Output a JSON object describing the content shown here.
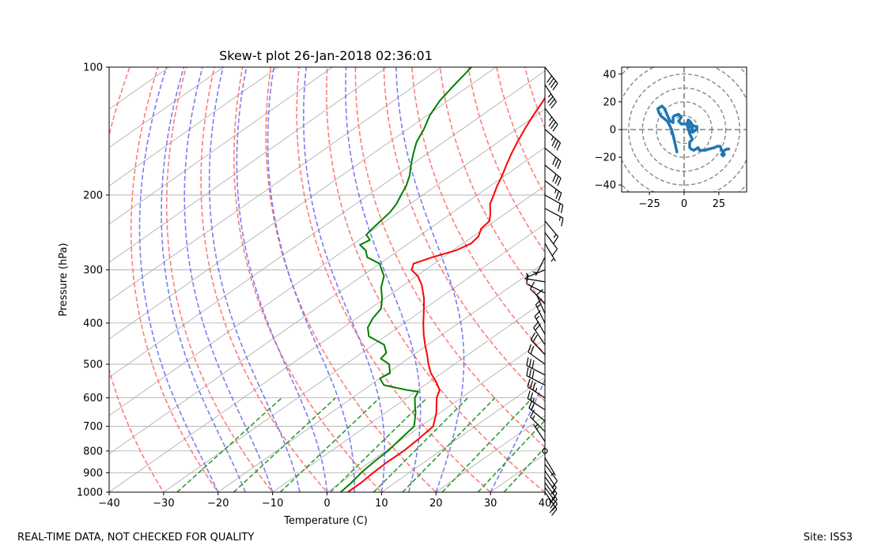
{
  "footer": {
    "left_text": "REAL-TIME DATA, NOT CHECKED FOR QUALITY",
    "right_text": "Site: ISS3"
  },
  "chart_data": [
    {
      "type": "line",
      "chart": "skew-t",
      "title": "Skew-t plot 26-Jan-2018 02:36:01",
      "xlabel": "Temperature (C)",
      "ylabel": "Pressure (hPa)",
      "xlim": [
        -40,
        40
      ],
      "ylim": [
        1000,
        100
      ],
      "x_ticks": [
        -40,
        -30,
        -20,
        -10,
        0,
        10,
        20,
        30,
        40
      ],
      "y_ticks": [
        1000,
        900,
        800,
        700,
        600,
        500,
        400,
        300,
        200,
        100
      ],
      "colors": {
        "temperature": "#ff0000",
        "dewpoint": "#008000",
        "isotherm": "#a9a9a9",
        "isobar": "#a9a9a9",
        "dry_adiabat": "#ff6666",
        "moist_adiabat": "#6666ee",
        "mixing_ratio": "#2e9b2e",
        "barb": "#000000"
      },
      "series": [
        {
          "name": "Temperature",
          "points": [
            [
              1000,
              3.8
            ],
            [
              950,
              3.8
            ],
            [
              900,
              3.4
            ],
            [
              850,
              3.2
            ],
            [
              800,
              3.3
            ],
            [
              750,
              2.9
            ],
            [
              700,
              2.3
            ],
            [
              650,
              -0.7
            ],
            [
              600,
              -4.5
            ],
            [
              575,
              -6.0
            ],
            [
              550,
              -8.8
            ],
            [
              525,
              -12.0
            ],
            [
              500,
              -14.8
            ],
            [
              475,
              -17.5
            ],
            [
              450,
              -20.5
            ],
            [
              425,
              -23.5
            ],
            [
              400,
              -26.5
            ],
            [
              375,
              -29.5
            ],
            [
              350,
              -32.8
            ],
            [
              325,
              -36.8
            ],
            [
              310,
              -39.8
            ],
            [
              300,
              -42.5
            ],
            [
              290,
              -43.8
            ],
            [
              280,
              -42.0
            ],
            [
              270,
              -39.5
            ],
            [
              260,
              -38.5
            ],
            [
              250,
              -39.0
            ],
            [
              240,
              -40.5
            ],
            [
              230,
              -41.0
            ],
            [
              220,
              -43.0
            ],
            [
              210,
              -45.3
            ],
            [
              200,
              -47.0
            ],
            [
              190,
              -48.8
            ],
            [
              180,
              -50.5
            ],
            [
              170,
              -52.5
            ],
            [
              160,
              -54.5
            ],
            [
              150,
              -56.5
            ],
            [
              140,
              -58.5
            ],
            [
              130,
              -60.5
            ],
            [
              120,
              -62.5
            ],
            [
              110,
              -65.0
            ],
            [
              103,
              -66.2
            ],
            [
              100,
              -66.5
            ]
          ]
        },
        {
          "name": "Dewpoint",
          "points": [
            [
              1000,
              2.5
            ],
            [
              950,
              2.0
            ],
            [
              900,
              1.2
            ],
            [
              850,
              0.7
            ],
            [
              800,
              0.4
            ],
            [
              750,
              -0.4
            ],
            [
              700,
              -1.2
            ],
            [
              650,
              -4.5
            ],
            [
              625,
              -6.5
            ],
            [
              600,
              -8.5
            ],
            [
              580,
              -9.5
            ],
            [
              575,
              -12.0
            ],
            [
              560,
              -17.5
            ],
            [
              540,
              -20.0
            ],
            [
              525,
              -19.5
            ],
            [
              500,
              -22.0
            ],
            [
              485,
              -25.0
            ],
            [
              470,
              -25.5
            ],
            [
              450,
              -28.0
            ],
            [
              430,
              -33.0
            ],
            [
              410,
              -35.5
            ],
            [
              390,
              -37.0
            ],
            [
              370,
              -38.0
            ],
            [
              350,
              -40.5
            ],
            [
              330,
              -43.5
            ],
            [
              310,
              -46.0
            ],
            [
              300,
              -48.0
            ],
            [
              290,
              -50.0
            ],
            [
              280,
              -54.0
            ],
            [
              270,
              -56.0
            ],
            [
              262,
              -58.5
            ],
            [
              255,
              -58.0
            ],
            [
              248,
              -60.0
            ],
            [
              240,
              -60.5
            ],
            [
              230,
              -61.0
            ],
            [
              220,
              -61.5
            ],
            [
              210,
              -62.5
            ],
            [
              200,
              -64.0
            ],
            [
              190,
              -65.5
            ],
            [
              180,
              -67.5
            ],
            [
              170,
              -70.0
            ],
            [
              160,
              -72.5
            ],
            [
              150,
              -75.0
            ],
            [
              140,
              -77.0
            ],
            [
              130,
              -79.5
            ],
            [
              120,
              -81.5
            ],
            [
              110,
              -83.0
            ],
            [
              103,
              -84.0
            ],
            [
              100,
              -84.5
            ]
          ]
        }
      ],
      "wind_barbs": [
        {
          "p": 100,
          "u": -25,
          "v": 32
        },
        {
          "p": 110,
          "u": -20,
          "v": 30
        },
        {
          "p": 125,
          "u": -22,
          "v": 28
        },
        {
          "p": 140,
          "u": -25,
          "v": 22
        },
        {
          "p": 155,
          "u": -24,
          "v": 20
        },
        {
          "p": 170,
          "u": -22,
          "v": 18
        },
        {
          "p": 185,
          "u": -20,
          "v": 15
        },
        {
          "p": 200,
          "u": -18,
          "v": 10
        },
        {
          "p": 215,
          "u": -15,
          "v": 8
        },
        {
          "p": 230,
          "u": -10,
          "v": 12
        },
        {
          "p": 245,
          "u": -6,
          "v": 8
        },
        {
          "p": 260,
          "u": -3,
          "v": 5
        },
        {
          "p": 280,
          "u": 2,
          "v": 4
        },
        {
          "p": 300,
          "u": 5,
          "v": 2
        },
        {
          "p": 320,
          "u": 6,
          "v": -1
        },
        {
          "p": 340,
          "u": 8,
          "v": -4
        },
        {
          "p": 360,
          "u": 6,
          "v": -6
        },
        {
          "p": 380,
          "u": 4,
          "v": -9
        },
        {
          "p": 400,
          "u": 6,
          "v": -12
        },
        {
          "p": 425,
          "u": 8,
          "v": -14
        },
        {
          "p": 450,
          "u": 10,
          "v": -15
        },
        {
          "p": 475,
          "u": 14,
          "v": -15
        },
        {
          "p": 500,
          "u": 18,
          "v": -13
        },
        {
          "p": 530,
          "u": 25,
          "v": -13
        },
        {
          "p": 560,
          "u": 27,
          "v": -14
        },
        {
          "p": 600,
          "u": 28,
          "v": -18
        },
        {
          "p": 640,
          "u": 23,
          "v": -15
        },
        {
          "p": 680,
          "u": 16,
          "v": -13
        },
        {
          "p": 720,
          "u": 10,
          "v": -10
        },
        {
          "p": 760,
          "u": 4,
          "v": -6
        },
        {
          "p": 800,
          "u": 0,
          "v": 0
        },
        {
          "p": 830,
          "u": -3,
          "v": 5
        },
        {
          "p": 860,
          "u": -6,
          "v": 8
        },
        {
          "p": 890,
          "u": -8,
          "v": 12
        },
        {
          "p": 920,
          "u": -10,
          "v": 14
        },
        {
          "p": 950,
          "u": -11,
          "v": 15
        },
        {
          "p": 975,
          "u": -12,
          "v": 16
        },
        {
          "p": 1000,
          "u": -12,
          "v": 17
        }
      ]
    },
    {
      "type": "line",
      "chart": "hodograph",
      "xlim": [
        -45,
        45
      ],
      "ylim": [
        -45,
        45
      ],
      "x_ticks": [
        -25,
        0,
        25
      ],
      "y_ticks": [
        -40,
        -20,
        0,
        20,
        40
      ],
      "rings": [
        10,
        20,
        30,
        40,
        50,
        60
      ],
      "color": "#1f77b4",
      "points": [
        [
          -5,
          -17
        ],
        [
          -7,
          -8
        ],
        [
          -9,
          0
        ],
        [
          -12,
          6
        ],
        [
          -17,
          10
        ],
        [
          -18,
          12
        ],
        [
          -19,
          15
        ],
        [
          -16,
          17
        ],
        [
          -14,
          15
        ],
        [
          -12,
          10
        ],
        [
          -10,
          6
        ],
        [
          -8,
          5
        ],
        [
          -8,
          9
        ],
        [
          -7,
          10
        ],
        [
          -4,
          11
        ],
        [
          -2,
          9
        ],
        [
          -4,
          6
        ],
        [
          -2,
          4
        ],
        [
          2,
          4
        ],
        [
          3,
          5
        ],
        [
          4,
          2
        ],
        [
          6,
          1
        ],
        [
          6,
          0
        ],
        [
          4,
          -1
        ],
        [
          6,
          -2
        ],
        [
          9,
          0
        ],
        [
          9,
          2
        ],
        [
          6,
          3
        ],
        [
          5,
          5
        ],
        [
          3,
          7
        ],
        [
          2,
          4
        ],
        [
          4,
          -3
        ],
        [
          6,
          -7
        ],
        [
          4,
          -9
        ],
        [
          4,
          -13
        ],
        [
          5,
          -14
        ],
        [
          7,
          -15
        ],
        [
          10,
          -13
        ],
        [
          11,
          -15
        ],
        [
          15,
          -15
        ],
        [
          18,
          -14
        ],
        [
          22,
          -13
        ],
        [
          24,
          -12
        ],
        [
          26,
          -12
        ],
        [
          27,
          -15
        ],
        [
          28,
          -16
        ],
        [
          29,
          -18
        ],
        [
          28,
          -19
        ],
        [
          27,
          -18
        ],
        [
          29,
          -15
        ],
        [
          31,
          -14
        ],
        [
          33,
          -14
        ]
      ]
    }
  ]
}
